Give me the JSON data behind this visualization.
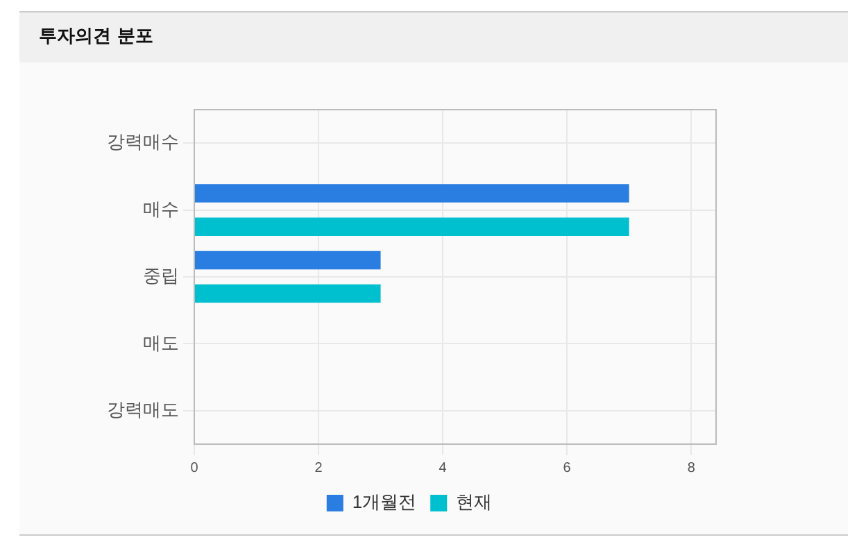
{
  "chart_data": {
    "type": "bar",
    "orientation": "horizontal",
    "title": "투자의견 분포",
    "categories": [
      "강력매수",
      "매수",
      "중립",
      "매도",
      "강력매도"
    ],
    "series": [
      {
        "name": "1개월전",
        "color": "#2a7de1",
        "values": [
          0,
          7,
          3,
          0,
          0
        ]
      },
      {
        "name": "현재",
        "color": "#00bfcf",
        "values": [
          0,
          7,
          3,
          0,
          0
        ]
      }
    ],
    "xlim": [
      0,
      8.4
    ],
    "xticks": [
      0,
      2,
      4,
      6,
      8
    ],
    "grid": true,
    "legend": "bottom"
  }
}
